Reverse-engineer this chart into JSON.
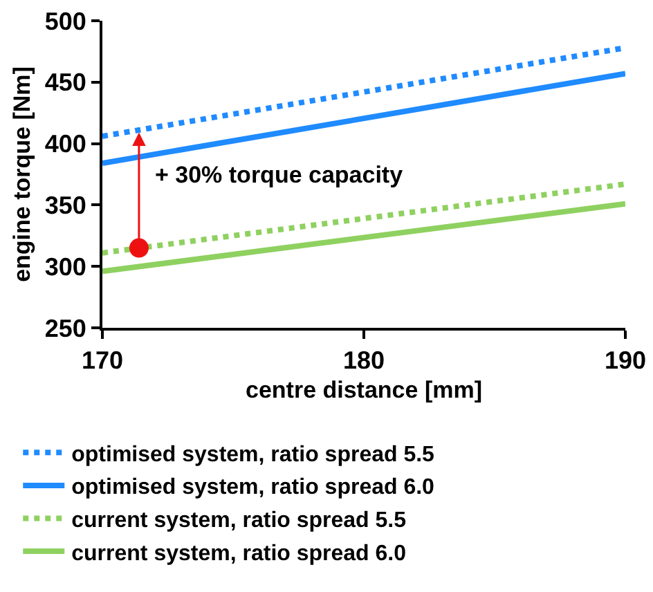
{
  "chart_data": {
    "type": "line",
    "xlabel": "centre distance [mm]",
    "ylabel": "engine torque [Nm]",
    "xlim": [
      170,
      190
    ],
    "xticks": [
      170,
      180,
      190
    ],
    "ylim": [
      250,
      500
    ],
    "yticks": [
      250,
      300,
      350,
      400,
      450,
      500
    ],
    "grid": false,
    "legend": "bottom",
    "marker": "none",
    "series": [
      {
        "name": "optimised system, ratio spread 5.5",
        "color": "#1f8bff",
        "line_style": "dotted",
        "x": [
          170,
          190
        ],
        "values": [
          406,
          478
        ]
      },
      {
        "name": "optimised system, ratio spread 6.0",
        "color": "#1f8bff",
        "line_style": "solid",
        "x": [
          170,
          190
        ],
        "values": [
          384,
          457
        ]
      },
      {
        "name": "current system, ratio spread 5.5",
        "color": "#8fd160",
        "line_style": "dotted",
        "x": [
          170,
          190
        ],
        "values": [
          311,
          367
        ]
      },
      {
        "name": "current system, ratio spread 6.0",
        "color": "#8fd160",
        "line_style": "solid",
        "x": [
          170,
          190
        ],
        "values": [
          296,
          351
        ]
      },
      {
        "type": "scatter",
        "color": "#ee1111",
        "marker": "circle",
        "x": [
          171.4
        ],
        "values": [
          315
        ]
      }
    ],
    "annotations": [
      {
        "text": "+ 30% torque capacity",
        "x": 171.4,
        "y": 409
      }
    ]
  }
}
